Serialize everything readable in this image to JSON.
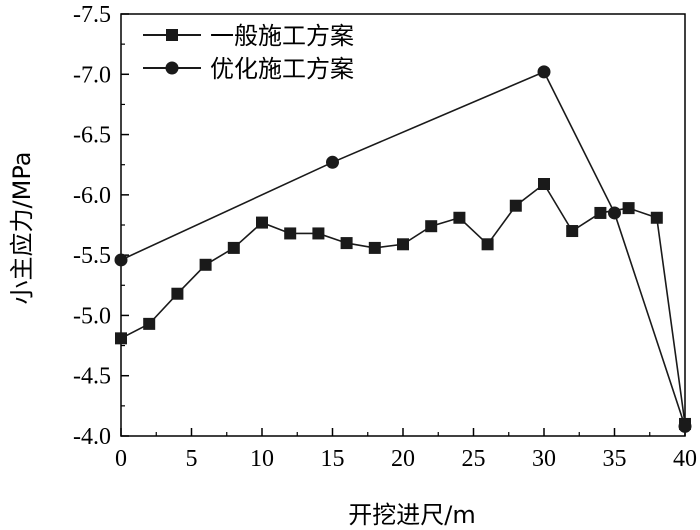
{
  "chart_data": {
    "type": "line",
    "xlabel": "开挖进尺/m",
    "ylabel": "小主应力/MPa",
    "xlim": [
      0,
      40
    ],
    "ylim": [
      -4.0,
      -7.5
    ],
    "y_axis_inverted": true,
    "x_ticks": [
      "0",
      "5",
      "10",
      "15",
      "20",
      "25",
      "30",
      "35",
      "40"
    ],
    "y_ticks": [
      "-4.0",
      "-4.5",
      "-5.0",
      "-5.5",
      "-6.0",
      "-6.5",
      "-7.0",
      "-7.5"
    ],
    "grid": false,
    "legend_position": "top-left",
    "series": [
      {
        "name": "一般施工方案",
        "marker": "square",
        "color": "#1a1a1a",
        "x": [
          0,
          2,
          4,
          6,
          8,
          10,
          12,
          14,
          16,
          18,
          20,
          22,
          24,
          26,
          28,
          30,
          32,
          34,
          36,
          38,
          40
        ],
        "y": [
          -4.81,
          -4.93,
          -5.18,
          -5.42,
          -5.56,
          -5.77,
          -5.68,
          -5.68,
          -5.6,
          -5.56,
          -5.59,
          -5.74,
          -5.81,
          -5.59,
          -5.91,
          -6.09,
          -5.7,
          -5.85,
          -5.89,
          -5.81,
          -4.1
        ]
      },
      {
        "name": "优化施工方案",
        "marker": "circle",
        "color": "#1a1a1a",
        "x": [
          0,
          15,
          30,
          35,
          40
        ],
        "y": [
          -5.46,
          -6.27,
          -7.02,
          -5.85,
          -4.08
        ]
      }
    ]
  }
}
